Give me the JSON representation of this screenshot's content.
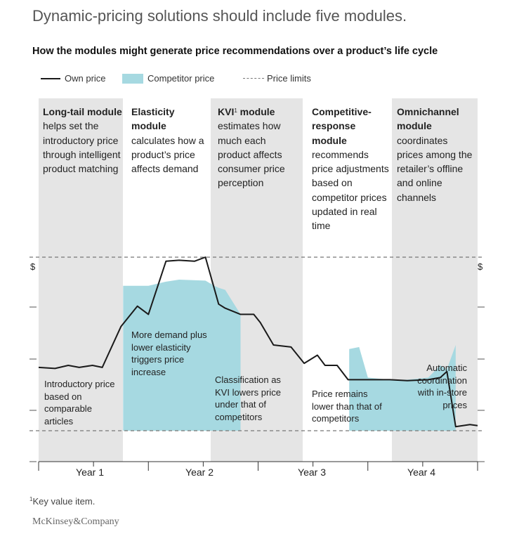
{
  "title": "Dynamic-pricing solutions should include five modules.",
  "subtitle": "How the modules might generate price recommendations over a product’s life cycle",
  "legend": {
    "own_price": "Own price",
    "competitor_price": "Competitor price",
    "price_limits": "Price limits"
  },
  "modules": [
    {
      "title": "Long-tail module",
      "text": "helps set the introductory price through intelligent product matching"
    },
    {
      "title": "Elasticity module",
      "text": "calculates how a product’s price affects demand"
    },
    {
      "title": "KVI",
      "title_sup": "1",
      "title_rest": " module",
      "text": "estimates how much each product affects consumer price perception"
    },
    {
      "title": "Competitive-response module",
      "text": "recommends price adjustments based on competitor prices updated in real time"
    },
    {
      "title": "Omnichannel module",
      "text": "coordinates prices among the retailer’s offline and online channels"
    }
  ],
  "annotations": {
    "introductory": "Introductory price based on comparable articles",
    "demand": "More demand plus lower elasticity triggers price increase",
    "kvi": "Classification as KVI lowers price under that of competitors",
    "remains": "Price remains lower than that of competitors",
    "automatic": "Automatic coordination with in-store prices"
  },
  "axis": {
    "currency_left": "$",
    "currency_right": "$"
  },
  "footnote": {
    "mark": "1",
    "text": "Key value item."
  },
  "brand": "McKinsey&Company",
  "colors": {
    "band": "#e5e5e5",
    "competitor": "#a6d9e1",
    "own": "#1a1a1a",
    "limits": "#777777"
  },
  "chart_data": {
    "type": "line",
    "title": "How the modules might generate price recommendations over a product’s life cycle",
    "xlabel": "",
    "ylabel": "$",
    "x_categories": [
      "Year 1",
      "Year 2",
      "Year 3",
      "Year 4"
    ],
    "x_range": [
      0,
      4
    ],
    "y_range": [
      0,
      100
    ],
    "grid": false,
    "legend_position": "top-left",
    "price_limits": {
      "upper": 100,
      "lower": 15
    },
    "series": [
      {
        "name": "Own price",
        "x": [
          0,
          0.15,
          0.27,
          0.37,
          0.49,
          0.58,
          0.75,
          0.9,
          1.0,
          1.16,
          1.28,
          1.42,
          1.52,
          1.64,
          1.7,
          1.84,
          1.96,
          2.02,
          2.14,
          2.3,
          2.42,
          2.54,
          2.61,
          2.72,
          2.82,
          3.0,
          3.2,
          3.36,
          3.55,
          3.66,
          3.72,
          3.8,
          3.93,
          4.0
        ],
        "y": [
          46,
          45.5,
          47,
          46,
          47,
          46,
          66,
          76,
          72,
          98,
          98.5,
          98,
          100,
          77,
          75,
          72,
          72,
          68,
          57,
          56,
          48,
          52,
          47,
          47,
          40,
          40,
          40,
          39.5,
          40,
          41,
          44,
          17,
          18,
          17.5
        ]
      },
      {
        "name": "Competitor price",
        "x": [
          0.77,
          1.0,
          1.16,
          1.28,
          1.52,
          1.6,
          1.64,
          1.7,
          1.84,
          2.83,
          2.92,
          3.0,
          3.2,
          3.36,
          3.55,
          3.66,
          3.72,
          3.8
        ],
        "y": [
          86,
          86,
          88,
          89,
          88.5,
          86,
          85,
          84,
          72,
          55,
          56,
          41,
          40,
          40,
          41,
          47,
          45,
          57
        ]
      }
    ]
  }
}
